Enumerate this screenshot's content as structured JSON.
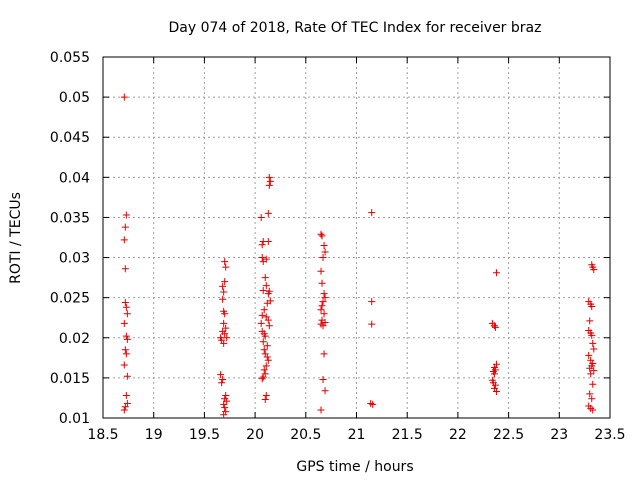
{
  "chart_data": {
    "type": "scatter",
    "title": "Day 074 of 2018, Rate Of TEC Index for receiver braz",
    "xlabel": "GPS time / hours",
    "ylabel": "ROTI / TECUs",
    "xlim": [
      18.5,
      23.5
    ],
    "ylim": [
      0.01,
      0.055
    ],
    "xticks": [
      "18.5",
      "19",
      "19.5",
      "20",
      "20.5",
      "21",
      "21.5",
      "22",
      "22.5",
      "23",
      "23.5"
    ],
    "yticks": [
      "0.01",
      "0.015",
      "0.02",
      "0.025",
      "0.03",
      "0.035",
      "0.04",
      "0.045",
      "0.05",
      "0.055"
    ],
    "grid": true,
    "marker": "+",
    "color": "#e00000",
    "points": [
      {
        "x": 18.71,
        "y": 0.05
      },
      {
        "x": 18.73,
        "y": 0.0353
      },
      {
        "x": 18.72,
        "y": 0.0338
      },
      {
        "x": 18.71,
        "y": 0.0322
      },
      {
        "x": 18.72,
        "y": 0.0286
      },
      {
        "x": 18.72,
        "y": 0.0244
      },
      {
        "x": 18.73,
        "y": 0.0238
      },
      {
        "x": 18.74,
        "y": 0.023
      },
      {
        "x": 18.71,
        "y": 0.0218
      },
      {
        "x": 18.73,
        "y": 0.0202
      },
      {
        "x": 18.74,
        "y": 0.0198
      },
      {
        "x": 18.72,
        "y": 0.0185
      },
      {
        "x": 18.73,
        "y": 0.018
      },
      {
        "x": 18.71,
        "y": 0.0166
      },
      {
        "x": 18.74,
        "y": 0.0152
      },
      {
        "x": 18.73,
        "y": 0.0128
      },
      {
        "x": 18.74,
        "y": 0.0118
      },
      {
        "x": 18.72,
        "y": 0.0114
      },
      {
        "x": 18.71,
        "y": 0.011
      },
      {
        "x": 19.7,
        "y": 0.0295
      },
      {
        "x": 19.71,
        "y": 0.0288
      },
      {
        "x": 19.7,
        "y": 0.027
      },
      {
        "x": 19.68,
        "y": 0.0264
      },
      {
        "x": 19.69,
        "y": 0.0257
      },
      {
        "x": 19.68,
        "y": 0.0248
      },
      {
        "x": 19.69,
        "y": 0.0233
      },
      {
        "x": 19.7,
        "y": 0.023
      },
      {
        "x": 19.69,
        "y": 0.0218
      },
      {
        "x": 19.71,
        "y": 0.0212
      },
      {
        "x": 19.68,
        "y": 0.0208
      },
      {
        "x": 19.7,
        "y": 0.0205
      },
      {
        "x": 19.66,
        "y": 0.02
      },
      {
        "x": 19.67,
        "y": 0.0197
      },
      {
        "x": 19.69,
        "y": 0.0193
      },
      {
        "x": 19.72,
        "y": 0.02
      },
      {
        "x": 19.66,
        "y": 0.0154
      },
      {
        "x": 19.68,
        "y": 0.0148
      },
      {
        "x": 19.67,
        "y": 0.0144
      },
      {
        "x": 19.71,
        "y": 0.0128
      },
      {
        "x": 19.7,
        "y": 0.0124
      },
      {
        "x": 19.72,
        "y": 0.0121
      },
      {
        "x": 19.69,
        "y": 0.0117
      },
      {
        "x": 19.7,
        "y": 0.0113
      },
      {
        "x": 19.71,
        "y": 0.0108
      },
      {
        "x": 19.69,
        "y": 0.0104
      },
      {
        "x": 20.14,
        "y": 0.04
      },
      {
        "x": 20.15,
        "y": 0.0395
      },
      {
        "x": 20.14,
        "y": 0.039
      },
      {
        "x": 20.13,
        "y": 0.0355
      },
      {
        "x": 20.06,
        "y": 0.035
      },
      {
        "x": 20.08,
        "y": 0.032
      },
      {
        "x": 20.13,
        "y": 0.032
      },
      {
        "x": 20.07,
        "y": 0.0316
      },
      {
        "x": 20.07,
        "y": 0.03
      },
      {
        "x": 20.11,
        "y": 0.0298
      },
      {
        "x": 20.08,
        "y": 0.0295
      },
      {
        "x": 20.1,
        "y": 0.0275
      },
      {
        "x": 20.11,
        "y": 0.0265
      },
      {
        "x": 20.08,
        "y": 0.0259
      },
      {
        "x": 20.14,
        "y": 0.0258
      },
      {
        "x": 20.13,
        "y": 0.0255
      },
      {
        "x": 20.15,
        "y": 0.0246
      },
      {
        "x": 20.12,
        "y": 0.0243
      },
      {
        "x": 20.09,
        "y": 0.0235
      },
      {
        "x": 20.07,
        "y": 0.0228
      },
      {
        "x": 20.11,
        "y": 0.0226
      },
      {
        "x": 20.13,
        "y": 0.0222
      },
      {
        "x": 20.06,
        "y": 0.0218
      },
      {
        "x": 20.14,
        "y": 0.0215
      },
      {
        "x": 20.07,
        "y": 0.0208
      },
      {
        "x": 20.09,
        "y": 0.0205
      },
      {
        "x": 20.1,
        "y": 0.0202
      },
      {
        "x": 20.08,
        "y": 0.0195
      },
      {
        "x": 20.12,
        "y": 0.019
      },
      {
        "x": 20.09,
        "y": 0.0185
      },
      {
        "x": 20.1,
        "y": 0.018
      },
      {
        "x": 20.12,
        "y": 0.0176
      },
      {
        "x": 20.13,
        "y": 0.0172
      },
      {
        "x": 20.11,
        "y": 0.0165
      },
      {
        "x": 20.09,
        "y": 0.016
      },
      {
        "x": 20.1,
        "y": 0.0155
      },
      {
        "x": 20.08,
        "y": 0.0151
      },
      {
        "x": 20.07,
        "y": 0.0149
      },
      {
        "x": 20.11,
        "y": 0.0128
      },
      {
        "x": 20.1,
        "y": 0.0123
      },
      {
        "x": 20.65,
        "y": 0.0329
      },
      {
        "x": 20.66,
        "y": 0.0327
      },
      {
        "x": 20.68,
        "y": 0.0315
      },
      {
        "x": 20.69,
        "y": 0.0307
      },
      {
        "x": 20.67,
        "y": 0.03
      },
      {
        "x": 20.65,
        "y": 0.0283
      },
      {
        "x": 20.66,
        "y": 0.0268
      },
      {
        "x": 20.68,
        "y": 0.0255
      },
      {
        "x": 20.69,
        "y": 0.025
      },
      {
        "x": 20.67,
        "y": 0.0245
      },
      {
        "x": 20.66,
        "y": 0.024
      },
      {
        "x": 20.65,
        "y": 0.0235
      },
      {
        "x": 20.68,
        "y": 0.023
      },
      {
        "x": 20.66,
        "y": 0.0222
      },
      {
        "x": 20.69,
        "y": 0.0219
      },
      {
        "x": 20.65,
        "y": 0.0217
      },
      {
        "x": 20.67,
        "y": 0.0215
      },
      {
        "x": 20.68,
        "y": 0.018
      },
      {
        "x": 20.67,
        "y": 0.0148
      },
      {
        "x": 20.69,
        "y": 0.0134
      },
      {
        "x": 20.65,
        "y": 0.011
      },
      {
        "x": 21.15,
        "y": 0.0356
      },
      {
        "x": 21.15,
        "y": 0.0245
      },
      {
        "x": 21.15,
        "y": 0.0217
      },
      {
        "x": 21.14,
        "y": 0.0118
      },
      {
        "x": 21.16,
        "y": 0.0117
      },
      {
        "x": 22.38,
        "y": 0.0281
      },
      {
        "x": 22.34,
        "y": 0.0218
      },
      {
        "x": 22.36,
        "y": 0.0215
      },
      {
        "x": 22.37,
        "y": 0.0213
      },
      {
        "x": 22.38,
        "y": 0.0167
      },
      {
        "x": 22.36,
        "y": 0.0163
      },
      {
        "x": 22.37,
        "y": 0.016
      },
      {
        "x": 22.35,
        "y": 0.0158
      },
      {
        "x": 22.36,
        "y": 0.0155
      },
      {
        "x": 22.34,
        "y": 0.0147
      },
      {
        "x": 22.35,
        "y": 0.0144
      },
      {
        "x": 22.37,
        "y": 0.0141
      },
      {
        "x": 22.36,
        "y": 0.0137
      },
      {
        "x": 22.38,
        "y": 0.0133
      },
      {
        "x": 23.32,
        "y": 0.0291
      },
      {
        "x": 23.33,
        "y": 0.0288
      },
      {
        "x": 23.34,
        "y": 0.0285
      },
      {
        "x": 23.29,
        "y": 0.0245
      },
      {
        "x": 23.31,
        "y": 0.0242
      },
      {
        "x": 23.32,
        "y": 0.0239
      },
      {
        "x": 23.3,
        "y": 0.0221
      },
      {
        "x": 23.29,
        "y": 0.0209
      },
      {
        "x": 23.31,
        "y": 0.0206
      },
      {
        "x": 23.32,
        "y": 0.0203
      },
      {
        "x": 23.33,
        "y": 0.0193
      },
      {
        "x": 23.34,
        "y": 0.0186
      },
      {
        "x": 23.29,
        "y": 0.0178
      },
      {
        "x": 23.31,
        "y": 0.0172
      },
      {
        "x": 23.33,
        "y": 0.0168
      },
      {
        "x": 23.32,
        "y": 0.0165
      },
      {
        "x": 23.3,
        "y": 0.0162
      },
      {
        "x": 23.34,
        "y": 0.0159
      },
      {
        "x": 23.31,
        "y": 0.0155
      },
      {
        "x": 23.33,
        "y": 0.0142
      },
      {
        "x": 23.3,
        "y": 0.013
      },
      {
        "x": 23.32,
        "y": 0.0124
      },
      {
        "x": 23.29,
        "y": 0.0115
      },
      {
        "x": 23.31,
        "y": 0.0112
      },
      {
        "x": 23.33,
        "y": 0.011
      }
    ]
  }
}
